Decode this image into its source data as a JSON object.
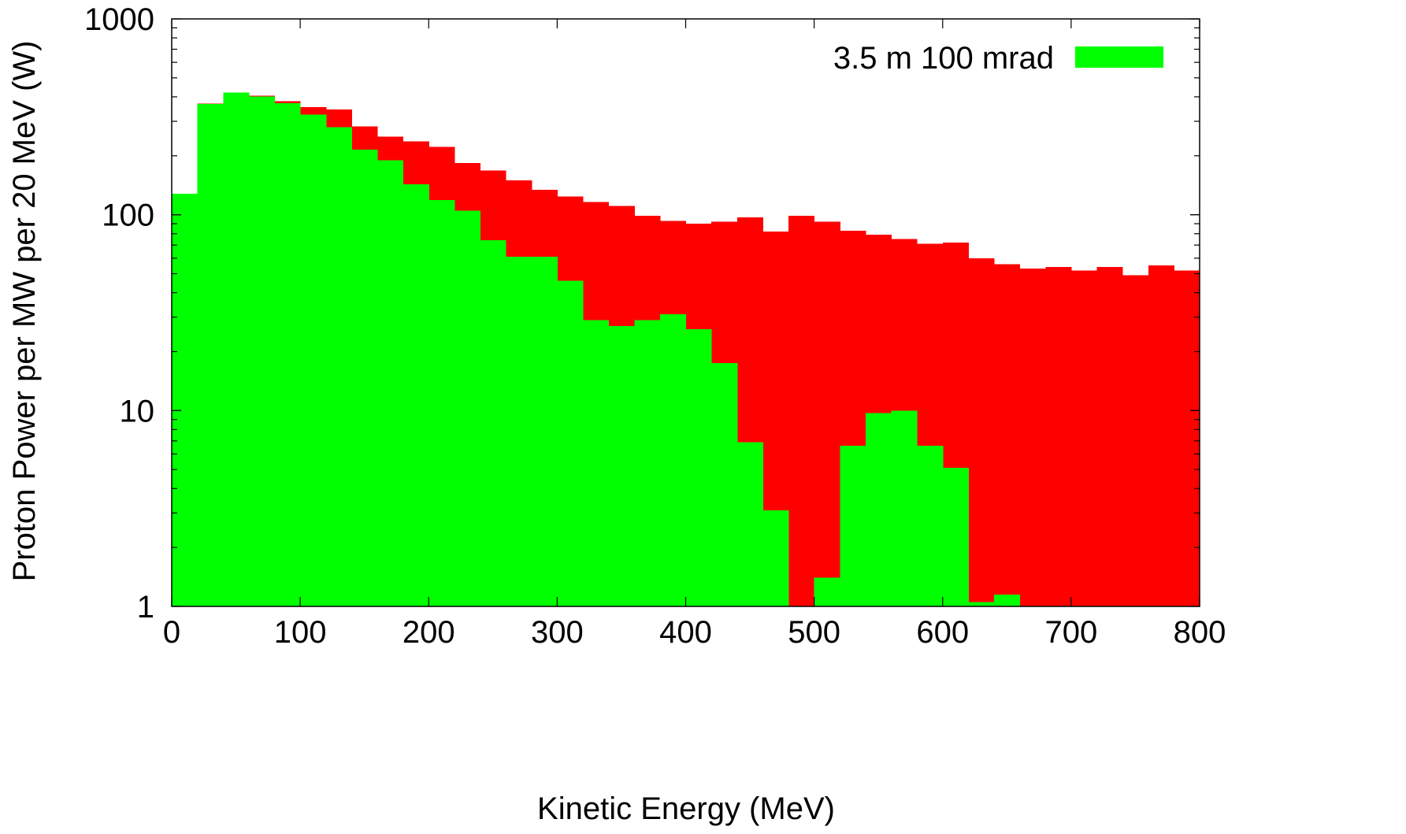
{
  "chart_data": {
    "type": "bar",
    "xlabel": "Kinetic Energy (MeV)",
    "ylabel": "Proton Power per MW per 20 MeV (W)",
    "xlim": [
      0,
      800
    ],
    "ylim": [
      1,
      1000
    ],
    "y_scale": "log",
    "grid": false,
    "legend_position": "top-right",
    "x_ticks": [
      0,
      100,
      200,
      300,
      400,
      500,
      600,
      700,
      800
    ],
    "y_ticks": [
      1,
      10,
      100,
      1000
    ],
    "bin_width": 20,
    "bin_starts": [
      0,
      20,
      40,
      60,
      80,
      100,
      120,
      140,
      160,
      180,
      200,
      220,
      240,
      260,
      280,
      300,
      320,
      340,
      360,
      380,
      400,
      420,
      440,
      460,
      480,
      500,
      520,
      540,
      560,
      580,
      600,
      620,
      640,
      660,
      680,
      700,
      720,
      740,
      760,
      780
    ],
    "series": [
      {
        "color": "#ff0000",
        "values": [
          128,
          370,
          420,
          405,
          380,
          355,
          345,
          283,
          250,
          237,
          222,
          184,
          168,
          150,
          134,
          124,
          116,
          111,
          99,
          93,
          90,
          92,
          97,
          82,
          99,
          92,
          83,
          79,
          75,
          71,
          72,
          60,
          56,
          53,
          54,
          52,
          54,
          49,
          55,
          52
        ]
      },
      {
        "name": "3.5 m 100 mrad",
        "color": "#00ff00",
        "values": [
          128,
          368,
          420,
          402,
          372,
          325,
          280,
          215,
          190,
          143,
          119,
          105,
          74,
          61,
          61,
          46,
          29,
          27,
          29,
          31,
          26,
          17.5,
          6.9,
          3.1,
          0,
          1.4,
          6.6,
          9.7,
          10,
          6.6,
          5.1,
          1.05,
          1.15,
          0,
          0,
          0,
          0,
          0,
          0,
          0
        ]
      }
    ]
  }
}
